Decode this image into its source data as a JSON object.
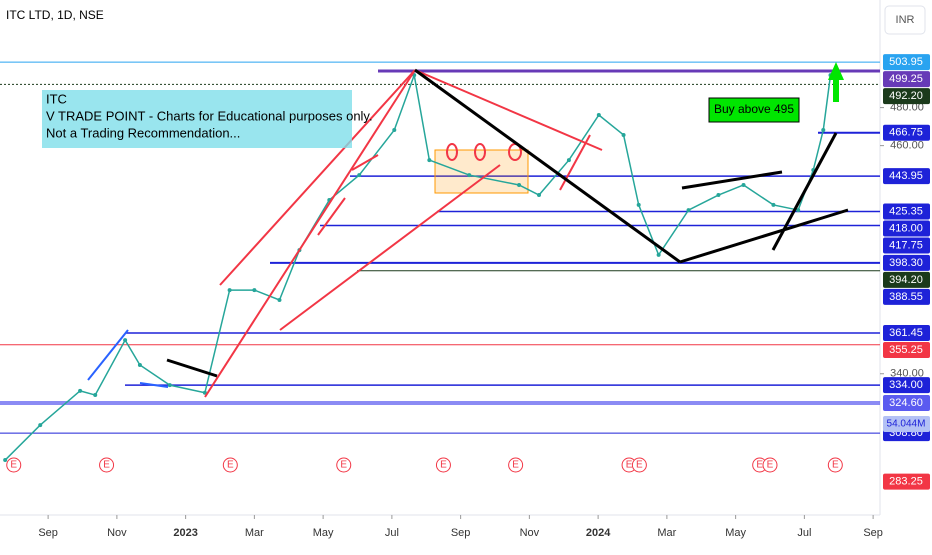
{
  "chart_data": {
    "type": "line",
    "title": "ITC LTD, 1D, NSE",
    "currency": "INR",
    "x": [
      -1.25,
      -0.23,
      0.93,
      1.37,
      2.24,
      2.67,
      3.54,
      4.56,
      5.28,
      6.0,
      6.73,
      7.31,
      8.18,
      9.05,
      10.07,
      10.65,
      11.09,
      12.25,
      13.7,
      14.28,
      15.15,
      16.02,
      16.74,
      17.18,
      17.76,
      18.63,
      19.5,
      20.23,
      21.1,
      21.82,
      22.26,
      22.55,
      22.76
    ],
    "values": [
      294.6,
      313,
      331,
      328.8,
      357.7,
      344.6,
      334,
      330,
      384,
      384,
      378.8,
      405,
      431.4,
      444.5,
      468.2,
      497.1,
      452.4,
      444.5,
      439.3,
      434,
      452.4,
      476.1,
      465.6,
      428.8,
      402.5,
      426.1,
      434,
      439.3,
      428.8,
      426.1,
      447.2,
      468.2,
      497.1
    ],
    "color": "#26a69a",
    "xlim": [
      -1.4,
      24.2
    ],
    "ylim": [
      265.7,
      536.6
    ],
    "xticks": [
      {
        "value": 0,
        "label": "Sep"
      },
      {
        "value": 2,
        "label": "Nov"
      },
      {
        "value": 4,
        "label": "2023"
      },
      {
        "value": 6,
        "label": "Mar"
      },
      {
        "value": 8,
        "label": "May"
      },
      {
        "value": 10,
        "label": "Jul"
      },
      {
        "value": 12,
        "label": "Sep"
      },
      {
        "value": 14,
        "label": "Nov"
      },
      {
        "value": 16,
        "label": "2024"
      },
      {
        "value": 18,
        "label": "Mar"
      },
      {
        "value": 20,
        "label": "May"
      },
      {
        "value": 22,
        "label": "Jul"
      },
      {
        "value": 24,
        "label": "Sep"
      }
    ],
    "yticks": [
      {
        "value": 480,
        "label": "480.00"
      },
      {
        "value": 460,
        "label": "460.00"
      },
      {
        "value": 340,
        "label": "340.00"
      }
    ],
    "levels": [
      {
        "value": 503.95,
        "label": "503.95",
        "color": "#29a3f0"
      },
      {
        "value": 499.25,
        "label": "499.25",
        "color": "#673ab7"
      },
      {
        "value": 492.2,
        "label": "492.20",
        "color": "#1b3a1b"
      },
      {
        "value": 466.75,
        "label": "466.75",
        "color": "#1e22d8"
      },
      {
        "value": 443.95,
        "label": "443.95",
        "color": "#1e22d8"
      },
      {
        "value": 425.35,
        "label": "425.35",
        "color": "#1e22d8"
      },
      {
        "value": 418,
        "label": "418.00",
        "color": "#1e22d8"
      },
      {
        "value": 417.75,
        "label": "417.75",
        "color": "#1e22d8"
      },
      {
        "value": 398.3,
        "label": "398.30",
        "color": "#1e22d8"
      },
      {
        "value": 394.2,
        "label": "394.20",
        "color": "#1b3a1b"
      },
      {
        "value": 388.55,
        "label": "388.55",
        "color": "#1e22d8"
      },
      {
        "value": 361.45,
        "label": "361.45",
        "color": "#1e22d8"
      },
      {
        "value": 355.25,
        "label": "355.25",
        "color": "#f23645"
      },
      {
        "value": 334,
        "label": "334.00",
        "color": "#1e22d8"
      },
      {
        "value": 324.6,
        "label": "324.60",
        "color": "#5b5bf0"
      },
      {
        "value": 308.8,
        "label": "308.80",
        "color": "#1e22d8"
      },
      {
        "value": 283.25,
        "label": "283.25",
        "color": "#f23645"
      }
    ],
    "volume_label": {
      "value": 54044000,
      "label": "54.044M"
    },
    "events": [
      {
        "x": -1.0,
        "label": "E"
      },
      {
        "x": 1.7,
        "label": "E"
      },
      {
        "x": 5.3,
        "label": "E"
      },
      {
        "x": 8.6,
        "label": "E"
      },
      {
        "x": 11.5,
        "label": "E"
      },
      {
        "x": 13.6,
        "label": "E"
      },
      {
        "x": 16.9,
        "label": "E"
      },
      {
        "x": 17.2,
        "label": "E"
      },
      {
        "x": 20.7,
        "label": "E"
      },
      {
        "x": 21.0,
        "label": "E"
      },
      {
        "x": 22.9,
        "label": "E"
      }
    ],
    "annotations": {
      "note_title": "ITC",
      "note_line1": "V TRADE POINT - Charts for Educational purposes only.",
      "note_line2": "Not a Trading Recommendation...",
      "buy": "Buy above 495"
    }
  }
}
